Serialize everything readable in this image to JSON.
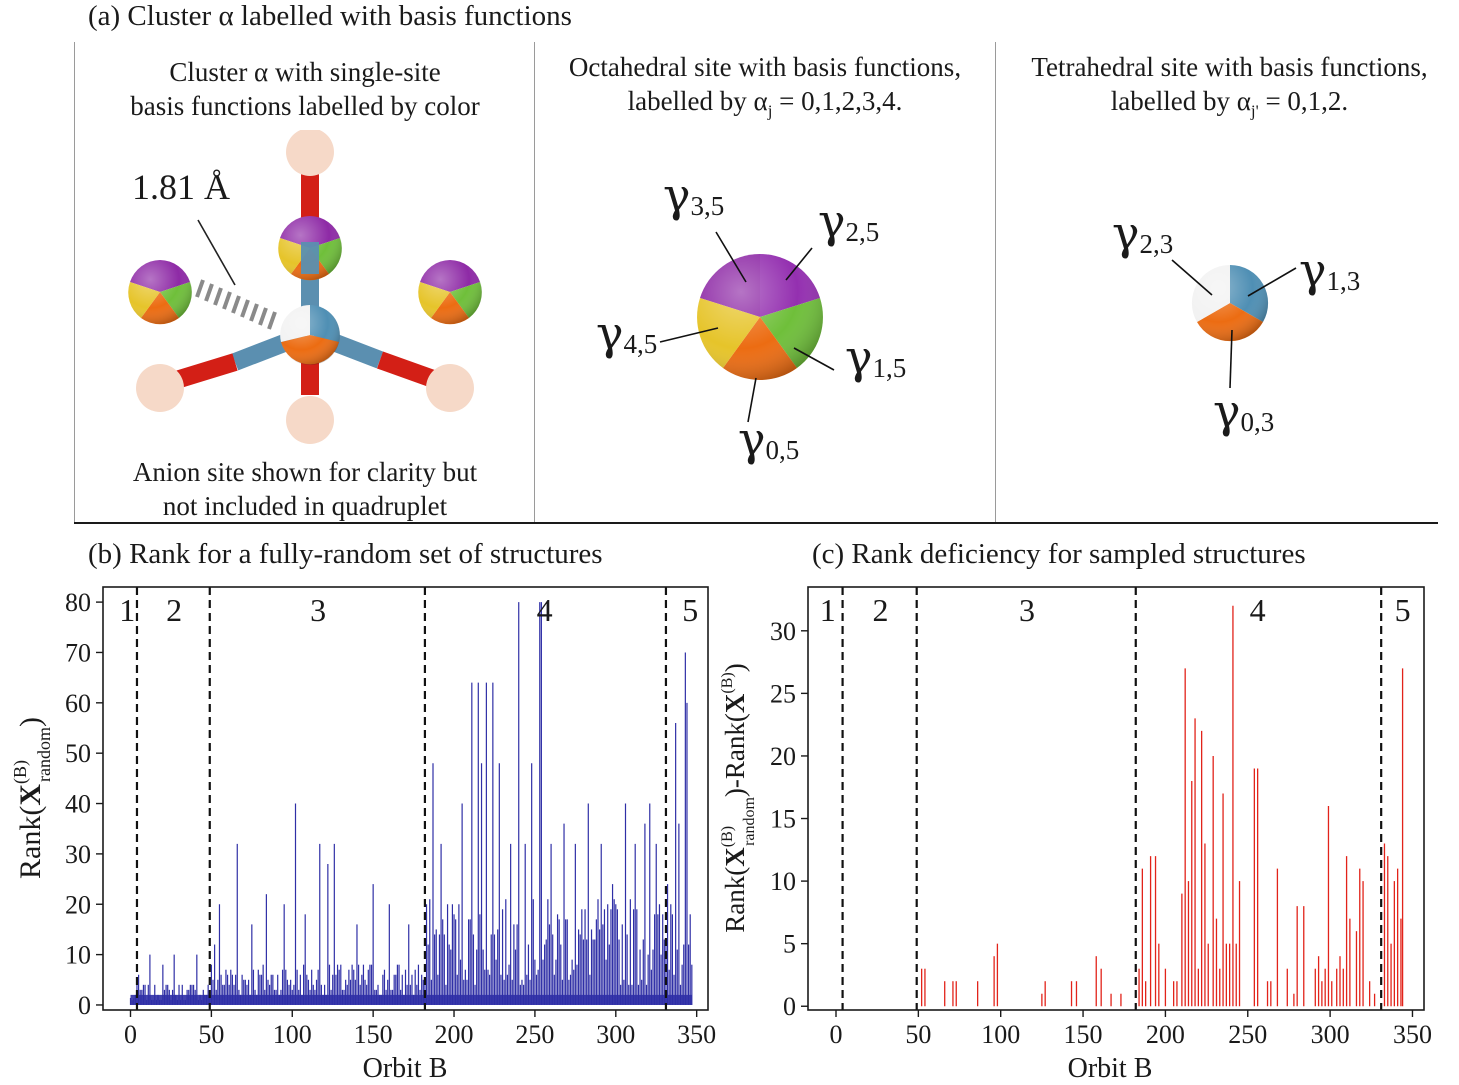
{
  "panel_a": {
    "heading": "(a) Cluster α labelled with basis functions",
    "left": {
      "caption_line1": "Cluster α with single-site",
      "caption_line2": "basis functions labelled by color",
      "distance_label": "1.81 Å",
      "footer_line1": "Anion site shown for clarity but",
      "footer_line2": "not included in quadruplet"
    },
    "middle": {
      "caption_line1": "Octahedral site with basis functions,",
      "caption_line2": "labelled by α",
      "caption_sub": "j",
      "caption_tail": " = 0,1,2,3,4.",
      "labels": [
        {
          "sym": "γ",
          "sub": "3,5"
        },
        {
          "sym": "γ",
          "sub": "2,5"
        },
        {
          "sym": "γ",
          "sub": "4,5"
        },
        {
          "sym": "γ",
          "sub": "1,5"
        },
        {
          "sym": "γ",
          "sub": "0,5"
        }
      ]
    },
    "right": {
      "caption_line1": "Tetrahedral site with basis functions,",
      "caption_line2": "labelled by α",
      "caption_sub": "j'",
      "caption_tail": " = 0,1,2.",
      "labels": [
        {
          "sym": "γ",
          "sub": "2,3"
        },
        {
          "sym": "γ",
          "sub": "1,3"
        },
        {
          "sym": "γ",
          "sub": "0,3"
        }
      ]
    },
    "colors": {
      "purple": "#8e2aa6",
      "green": "#6fbf3a",
      "orange": "#ec6c12",
      "yellow": "#e6c42a",
      "blue": "#4f8fb4",
      "white": "#f2f2f2",
      "anion": "#f6d9c8",
      "bond_red": "#d31f16",
      "bond_blue": "#5b8fb0"
    }
  },
  "chart_data": [
    {
      "type": "bar",
      "title": "(b) Rank for a fully-random set of structures",
      "xlabel": "Orbit B",
      "ylabel_main": "Rank(",
      "ylabel_bold": "X",
      "ylabel_sup": "(B)",
      "ylabel_sub": "random",
      "ylabel_close": ")",
      "xlim": [
        -17,
        357
      ],
      "ylim": [
        -1,
        83
      ],
      "xticks": [
        0,
        50,
        100,
        150,
        200,
        250,
        300,
        350
      ],
      "yticks": [
        0,
        10,
        20,
        30,
        40,
        50,
        60,
        70,
        80
      ],
      "color": "#2f2fa6",
      "dividers": [
        4,
        49,
        182,
        331
      ],
      "regions": [
        {
          "label": "1",
          "x": -2
        },
        {
          "label": "2",
          "x": 27
        },
        {
          "label": "3",
          "x": 116
        },
        {
          "label": "4",
          "x": 256
        },
        {
          "label": "5",
          "x": 346
        }
      ],
      "peaks": [
        {
          "x": 3,
          "y": 2
        },
        {
          "x": 5,
          "y": 6
        },
        {
          "x": 12,
          "y": 10
        },
        {
          "x": 20,
          "y": 8
        },
        {
          "x": 27,
          "y": 10
        },
        {
          "x": 41,
          "y": 10
        },
        {
          "x": 52,
          "y": 12
        },
        {
          "x": 55,
          "y": 20
        },
        {
          "x": 66,
          "y": 32
        },
        {
          "x": 75,
          "y": 16
        },
        {
          "x": 84,
          "y": 22
        },
        {
          "x": 95,
          "y": 20
        },
        {
          "x": 102,
          "y": 40
        },
        {
          "x": 108,
          "y": 18
        },
        {
          "x": 117,
          "y": 32
        },
        {
          "x": 122,
          "y": 28
        },
        {
          "x": 126,
          "y": 32
        },
        {
          "x": 140,
          "y": 16
        },
        {
          "x": 150,
          "y": 24
        },
        {
          "x": 160,
          "y": 20
        },
        {
          "x": 172,
          "y": 16
        },
        {
          "x": 178,
          "y": 8
        },
        {
          "x": 187,
          "y": 48
        },
        {
          "x": 192,
          "y": 32
        },
        {
          "x": 199,
          "y": 20
        },
        {
          "x": 205,
          "y": 40
        },
        {
          "x": 211,
          "y": 64
        },
        {
          "x": 215,
          "y": 64
        },
        {
          "x": 217,
          "y": 48
        },
        {
          "x": 220,
          "y": 64
        },
        {
          "x": 224,
          "y": 64
        },
        {
          "x": 228,
          "y": 48
        },
        {
          "x": 235,
          "y": 32
        },
        {
          "x": 240,
          "y": 80
        },
        {
          "x": 244,
          "y": 32
        },
        {
          "x": 248,
          "y": 48
        },
        {
          "x": 253,
          "y": 80
        },
        {
          "x": 254,
          "y": 80
        },
        {
          "x": 260,
          "y": 32
        },
        {
          "x": 268,
          "y": 36
        },
        {
          "x": 275,
          "y": 32
        },
        {
          "x": 283,
          "y": 40
        },
        {
          "x": 291,
          "y": 32
        },
        {
          "x": 298,
          "y": 24
        },
        {
          "x": 306,
          "y": 40
        },
        {
          "x": 312,
          "y": 32
        },
        {
          "x": 318,
          "y": 36
        },
        {
          "x": 321,
          "y": 40
        },
        {
          "x": 325,
          "y": 32
        },
        {
          "x": 332,
          "y": 24
        },
        {
          "x": 337,
          "y": 56
        },
        {
          "x": 339,
          "y": 36
        },
        {
          "x": 343,
          "y": 70
        },
        {
          "x": 344,
          "y": 60
        },
        {
          "x": 347,
          "y": 8
        }
      ]
    },
    {
      "type": "bar",
      "title": "(c) Rank deficiency for sampled structures",
      "xlabel": "Orbit B",
      "ylabel_main": "Rank(",
      "ylabel_bold": "X",
      "ylabel_sup": "(B)",
      "ylabel_sub": "random",
      "ylabel_mid": ")-Rank(",
      "ylabel_bold2": "X",
      "ylabel_sup2": "(B)",
      "ylabel_close": ")",
      "xlim": [
        -17,
        357
      ],
      "ylim": [
        -0.3,
        33.5
      ],
      "xticks": [
        0,
        50,
        100,
        150,
        200,
        250,
        300,
        350
      ],
      "yticks": [
        0,
        5,
        10,
        15,
        20,
        25,
        30
      ],
      "color": "#e2231a",
      "dividers": [
        4,
        49,
        182,
        331
      ],
      "regions": [
        {
          "label": "1",
          "x": -5
        },
        {
          "label": "2",
          "x": 27
        },
        {
          "label": "3",
          "x": 116
        },
        {
          "label": "4",
          "x": 256
        },
        {
          "label": "5",
          "x": 344
        }
      ],
      "values": [
        {
          "x": 52,
          "y": 3
        },
        {
          "x": 54,
          "y": 3
        },
        {
          "x": 66,
          "y": 2
        },
        {
          "x": 71,
          "y": 2
        },
        {
          "x": 73,
          "y": 2
        },
        {
          "x": 86,
          "y": 2
        },
        {
          "x": 96,
          "y": 4
        },
        {
          "x": 98,
          "y": 5
        },
        {
          "x": 125,
          "y": 1
        },
        {
          "x": 127,
          "y": 2
        },
        {
          "x": 143,
          "y": 2
        },
        {
          "x": 146,
          "y": 2
        },
        {
          "x": 158,
          "y": 4
        },
        {
          "x": 161,
          "y": 3
        },
        {
          "x": 167,
          "y": 1
        },
        {
          "x": 173,
          "y": 1
        },
        {
          "x": 184,
          "y": 3
        },
        {
          "x": 186,
          "y": 11
        },
        {
          "x": 188,
          "y": 2
        },
        {
          "x": 191,
          "y": 12
        },
        {
          "x": 194,
          "y": 12
        },
        {
          "x": 196,
          "y": 5
        },
        {
          "x": 200,
          "y": 3
        },
        {
          "x": 205,
          "y": 2
        },
        {
          "x": 207,
          "y": 2
        },
        {
          "x": 210,
          "y": 9
        },
        {
          "x": 212,
          "y": 27
        },
        {
          "x": 214,
          "y": 10
        },
        {
          "x": 216,
          "y": 18
        },
        {
          "x": 218,
          "y": 23
        },
        {
          "x": 220,
          "y": 3
        },
        {
          "x": 222,
          "y": 22
        },
        {
          "x": 224,
          "y": 13
        },
        {
          "x": 226,
          "y": 5
        },
        {
          "x": 229,
          "y": 20
        },
        {
          "x": 231,
          "y": 7
        },
        {
          "x": 233,
          "y": 3
        },
        {
          "x": 235,
          "y": 17
        },
        {
          "x": 237,
          "y": 5
        },
        {
          "x": 239,
          "y": 5
        },
        {
          "x": 241,
          "y": 32
        },
        {
          "x": 243,
          "y": 5
        },
        {
          "x": 245,
          "y": 10
        },
        {
          "x": 254,
          "y": 19
        },
        {
          "x": 256,
          "y": 19
        },
        {
          "x": 262,
          "y": 2
        },
        {
          "x": 264,
          "y": 2
        },
        {
          "x": 268,
          "y": 11
        },
        {
          "x": 274,
          "y": 3
        },
        {
          "x": 278,
          "y": 1
        },
        {
          "x": 280,
          "y": 8
        },
        {
          "x": 284,
          "y": 8
        },
        {
          "x": 291,
          "y": 3
        },
        {
          "x": 293,
          "y": 4
        },
        {
          "x": 295,
          "y": 2
        },
        {
          "x": 297,
          "y": 3
        },
        {
          "x": 299,
          "y": 16
        },
        {
          "x": 301,
          "y": 2
        },
        {
          "x": 304,
          "y": 3
        },
        {
          "x": 306,
          "y": 4
        },
        {
          "x": 308,
          "y": 3
        },
        {
          "x": 310,
          "y": 12
        },
        {
          "x": 312,
          "y": 7
        },
        {
          "x": 316,
          "y": 6
        },
        {
          "x": 318,
          "y": 11
        },
        {
          "x": 320,
          "y": 10
        },
        {
          "x": 324,
          "y": 2
        },
        {
          "x": 327,
          "y": 1
        },
        {
          "x": 333,
          "y": 13
        },
        {
          "x": 335,
          "y": 12
        },
        {
          "x": 337,
          "y": 5
        },
        {
          "x": 339,
          "y": 10
        },
        {
          "x": 341,
          "y": 11
        },
        {
          "x": 343,
          "y": 7
        },
        {
          "x": 344,
          "y": 27
        }
      ]
    }
  ]
}
